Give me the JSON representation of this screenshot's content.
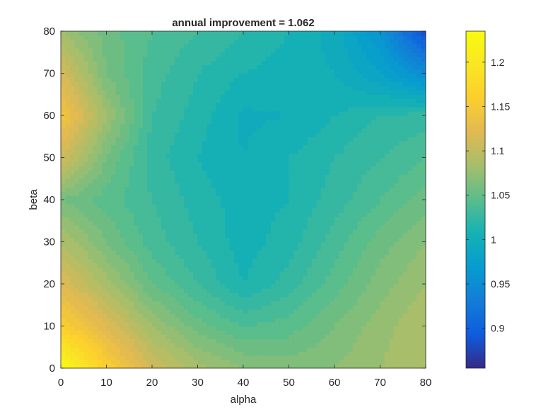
{
  "chart_data": {
    "type": "heatmap",
    "title": "annual improvement = 1.062",
    "xlabel": "alpha",
    "ylabel": "beta",
    "xlim": [
      0,
      80
    ],
    "ylim": [
      0,
      80
    ],
    "x_ticks": [
      0,
      10,
      20,
      30,
      40,
      50,
      60,
      70,
      80
    ],
    "y_ticks": [
      0,
      10,
      20,
      30,
      40,
      50,
      60,
      70,
      80
    ],
    "grid": false,
    "colormap": "parula",
    "colorbar": {
      "range": [
        0.855,
        1.235
      ],
      "ticks": [
        0.9,
        0.95,
        1,
        1.05,
        1.1,
        1.15,
        1.2
      ],
      "tick_labels": [
        "0.9",
        "0.95",
        "1",
        "1.05",
        "1.1",
        "1.15",
        "1.2"
      ]
    },
    "x": [
      0,
      10,
      20,
      30,
      40,
      50,
      60,
      70,
      80
    ],
    "y": [
      0,
      10,
      20,
      30,
      40,
      50,
      60,
      70,
      80
    ],
    "z": [
      [
        1.235,
        1.16,
        1.11,
        1.085,
        1.07,
        1.065,
        1.07,
        1.08,
        1.09
      ],
      [
        1.16,
        1.12,
        1.08,
        1.055,
        1.04,
        1.045,
        1.06,
        1.075,
        1.09
      ],
      [
        1.12,
        1.085,
        1.05,
        1.03,
        1.01,
        1.025,
        1.045,
        1.065,
        1.08
      ],
      [
        1.09,
        1.06,
        1.035,
        1.02,
        1.005,
        1.015,
        1.035,
        1.055,
        1.07
      ],
      [
        1.06,
        1.045,
        1.03,
        1.015,
        1.005,
        1.01,
        1.025,
        1.04,
        1.055
      ],
      [
        1.11,
        1.06,
        1.025,
        1.01,
        1.0,
        1.01,
        1.02,
        1.03,
        1.04
      ],
      [
        1.145,
        1.08,
        1.03,
        1.015,
        0.998,
        1.0,
        1.01,
        1.02,
        1.025
      ],
      [
        1.115,
        1.06,
        1.035,
        1.02,
        1.01,
        1.005,
        1.0,
        0.98,
        0.95
      ],
      [
        1.08,
        1.055,
        1.04,
        1.03,
        1.02,
        1.01,
        0.995,
        0.96,
        0.88
      ]
    ]
  },
  "colors": {
    "axis": "#262626",
    "background": "#ffffff"
  }
}
